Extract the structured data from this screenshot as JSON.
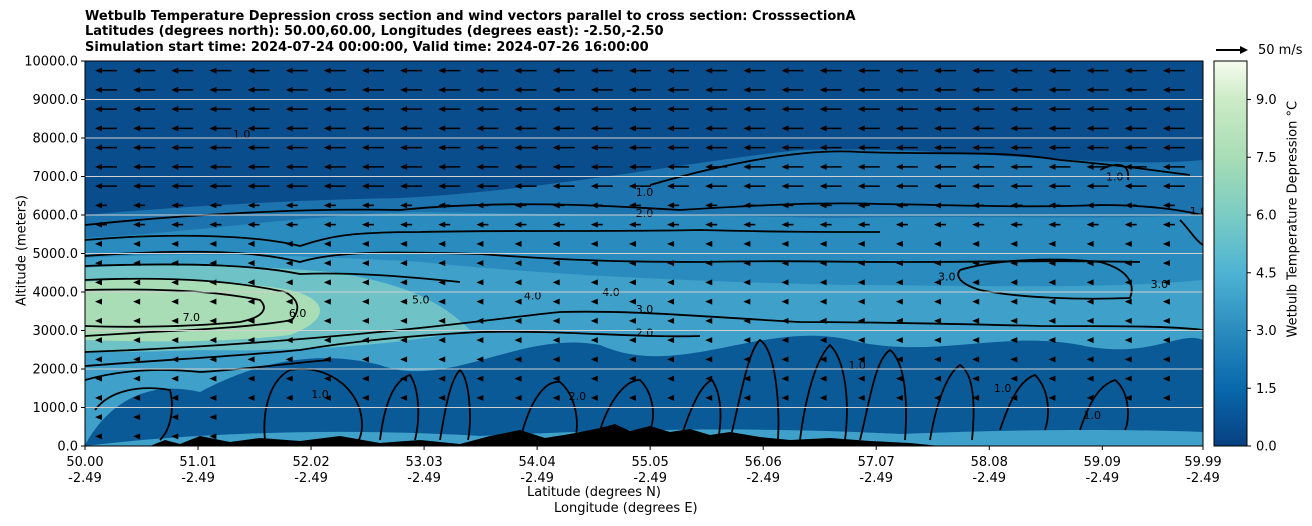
{
  "title": {
    "line1": "Wetbulb Temperature Depression cross section and wind vectors parallel to cross section: CrosssectionA",
    "line2": "Latitudes (degrees north): 50.00,60.00, Longitudes (degrees east): -2.50,-2.50",
    "line3": "Simulation start time: 2024-07-24 00:00:00, Valid time: 2024-07-26 16:00:00"
  },
  "axes": {
    "xlabel_lat": "Latitude (degrees N)",
    "xlabel_lon": "Longitude (degrees E)",
    "ylabel": "Altitude (meters)",
    "colorbar_label": "Wetbulb Temperature Depression °C",
    "quiver_key": "50 m/s"
  },
  "colors": {
    "low": "#08467d",
    "mid": "#2a8cbe",
    "high": "#ccebc5",
    "terrain": "#000000",
    "gridline": "#c8c8c8"
  },
  "chart_data": {
    "type": "contourf",
    "x_lat_ticks": [
      "50.00",
      "51.01",
      "52.02",
      "53.03",
      "54.04",
      "55.05",
      "56.06",
      "57.07",
      "58.08",
      "59.09",
      "59.99"
    ],
    "x_lon_ticks": [
      "-2.49",
      "-2.49",
      "-2.49",
      "-2.49",
      "-2.49",
      "-2.49",
      "-2.49",
      "-2.49",
      "-2.49",
      "-2.49",
      "-2.49"
    ],
    "xlim": [
      50.0,
      59.99
    ],
    "y_ticks": [
      "0.0",
      "1000.0",
      "2000.0",
      "3000.0",
      "4000.0",
      "5000.0",
      "6000.0",
      "7000.0",
      "8000.0",
      "9000.0",
      "10000.0"
    ],
    "ylim": [
      0,
      10000
    ],
    "colorbar_ticks": [
      "0.0",
      "1.5",
      "3.0",
      "4.5",
      "6.0",
      "7.5",
      "9.0"
    ],
    "colorbar_range": [
      0,
      10
    ],
    "contour_labels": [
      {
        "text": "1.0",
        "lat": 51.4,
        "alt": 8000
      },
      {
        "text": "1.0",
        "lat": 55.0,
        "alt": 6500
      },
      {
        "text": "2.0",
        "lat": 55.0,
        "alt": 5950
      },
      {
        "text": "7.0",
        "lat": 50.95,
        "alt": 3250
      },
      {
        "text": "6.0",
        "lat": 51.9,
        "alt": 3350
      },
      {
        "text": "5.0",
        "lat": 53.0,
        "alt": 3700
      },
      {
        "text": "4.0",
        "lat": 54.0,
        "alt": 3800
      },
      {
        "text": "4.0",
        "lat": 54.7,
        "alt": 3900
      },
      {
        "text": "3.0",
        "lat": 55.0,
        "alt": 3450
      },
      {
        "text": "2.0",
        "lat": 55.0,
        "alt": 2850
      },
      {
        "text": "3.0",
        "lat": 57.7,
        "alt": 4300
      },
      {
        "text": "3.0",
        "lat": 59.6,
        "alt": 4100
      },
      {
        "text": "1.0",
        "lat": 59.2,
        "alt": 6900
      },
      {
        "text": "1.0",
        "lat": 59.95,
        "alt": 6000
      },
      {
        "text": "1.0",
        "lat": 52.1,
        "alt": 1250
      },
      {
        "text": "2.0",
        "lat": 54.4,
        "alt": 1200
      },
      {
        "text": "1.0",
        "lat": 56.9,
        "alt": 2000
      },
      {
        "text": "1.0",
        "lat": 58.2,
        "alt": 1400
      },
      {
        "text": "1.0",
        "lat": 59.0,
        "alt": 700
      }
    ],
    "wind": {
      "direction": "toward decreasing latitude",
      "upper_levels_m": [
        6000,
        10000
      ],
      "note": "strong winds aloft, weak below 6000 m"
    }
  }
}
